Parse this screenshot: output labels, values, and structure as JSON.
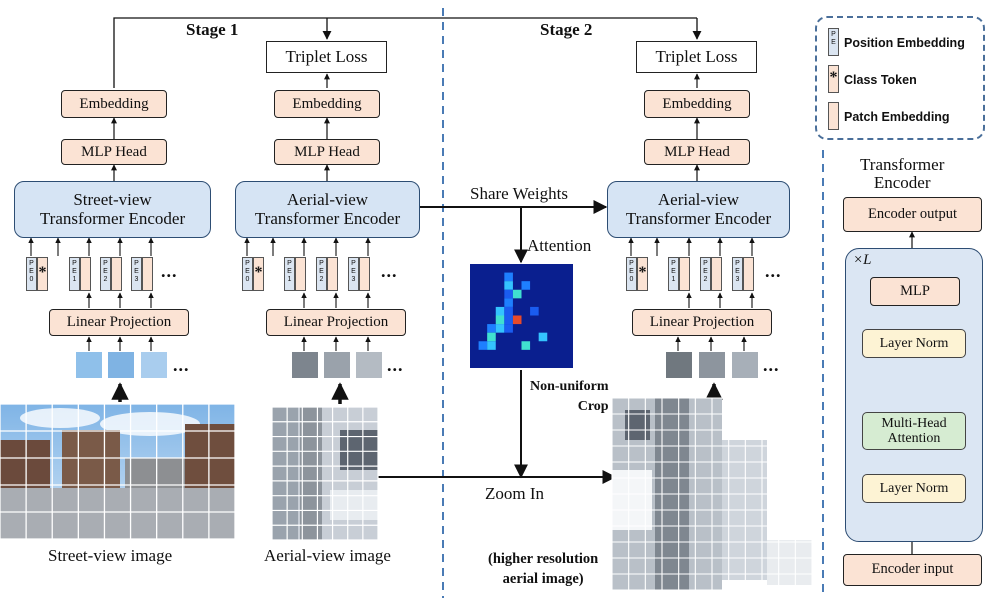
{
  "stages": {
    "stage1": "Stage 1",
    "stage2": "Stage 2"
  },
  "stage1_street": {
    "embedding": "Embedding",
    "mlp_head": "MLP Head",
    "encoder": [
      "Street-view",
      "Transformer Encoder"
    ],
    "linear_projection": "Linear Projection",
    "image_caption": "Street-view image"
  },
  "stage1_aerial": {
    "loss": "Triplet Loss",
    "embedding": "Embedding",
    "mlp_head": "MLP Head",
    "encoder": [
      "Aerial-view",
      "Transformer Encoder"
    ],
    "linear_projection": "Linear Projection",
    "image_caption": "Aerial-view image"
  },
  "stage2_aerial": {
    "loss": "Triplet Loss",
    "embedding": "Embedding",
    "mlp_head": "MLP Head",
    "encoder": [
      "Aerial-view",
      "Transformer Encoder"
    ],
    "linear_projection": "Linear Projection"
  },
  "middle": {
    "share_weights": "Share Weights",
    "attention": "Attention",
    "non_uniform_crop": [
      "Non-uniform",
      "Crop"
    ],
    "zoom_in": "Zoom In",
    "higher_res": [
      "(higher resolution",
      "aerial image)"
    ]
  },
  "tokens": {
    "pe_labels": [
      "PE0",
      "PE1",
      "PE2",
      "PE3"
    ],
    "class_token_symbol": "*",
    "ellipsis": "..."
  },
  "legend": {
    "position_embedding": "Position Embedding",
    "class_token": "Class Token",
    "patch_embedding": "Patch Embedding",
    "pe_mark": "PE",
    "star": "*"
  },
  "transformer_encoder": {
    "title": [
      "Transformer",
      "Encoder"
    ],
    "output": "Encoder output",
    "repeat": "×L",
    "mlp": "MLP",
    "layer_norm_top": "Layer Norm",
    "mha": [
      "Multi-Head",
      "Attention"
    ],
    "layer_norm_bottom": "Layer Norm",
    "input": "Encoder input"
  },
  "colors": {
    "peach": "#fbe3d4",
    "encoder_blue": "#d6e4f4",
    "pe_blue": "#dbe5f1",
    "layer_norm_yellow": "#fdf3d4",
    "attention_green": "#d6ecd2",
    "divider": "#4a7bb5"
  }
}
